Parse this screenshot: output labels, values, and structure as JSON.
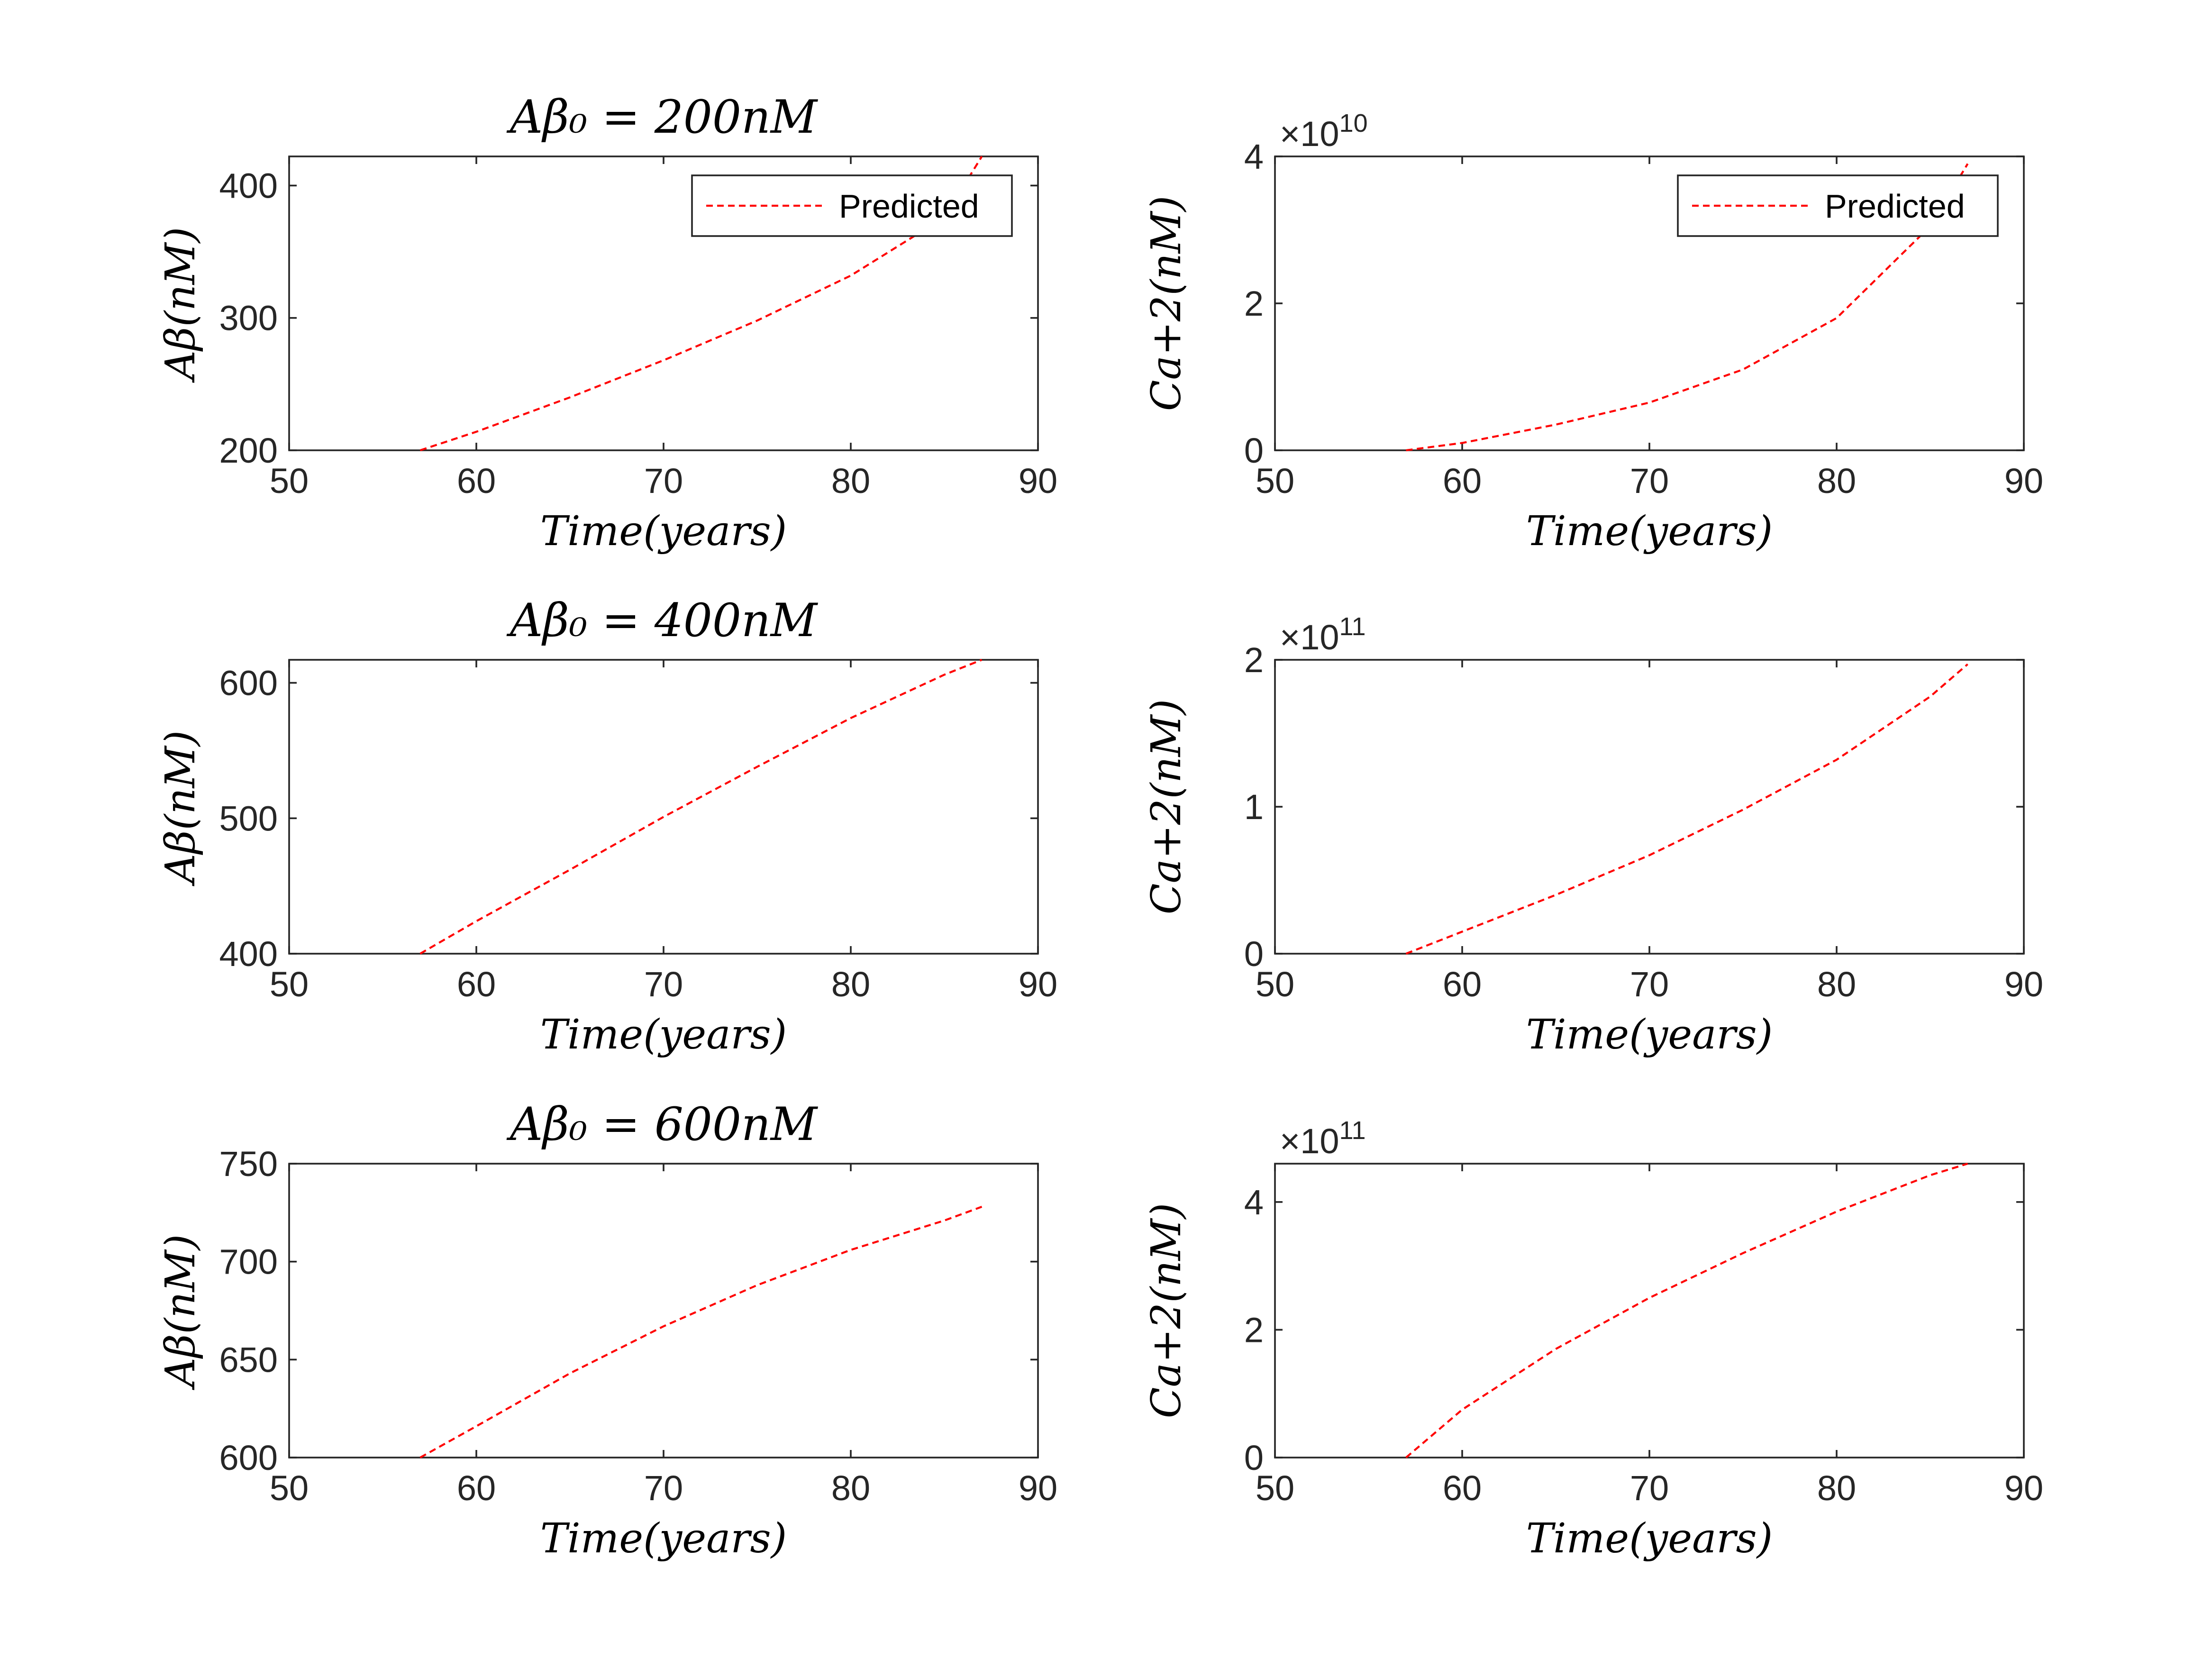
{
  "chart_data": [
    {
      "type": "line",
      "title": "Aβ₀ = 200nM",
      "xlabel": "Time(years)",
      "ylabel": "Aβ(nM)",
      "xlim": [
        50,
        90
      ],
      "ylim": [
        200,
        422
      ],
      "xticks": [
        "50",
        "60",
        "70",
        "80",
        "90"
      ],
      "yticks": [
        "200",
        "300",
        "400"
      ],
      "legend": "top-right",
      "series": [
        {
          "name": "Predicted",
          "color": "#ff0000",
          "x": [
            57,
            60,
            65,
            70,
            75,
            80,
            85,
            87
          ],
          "y": [
            200,
            214,
            240,
            268,
            298,
            332,
            376,
            422
          ]
        }
      ]
    },
    {
      "type": "line",
      "xlabel": "Time(years)",
      "ylabel": "Ca+2(nM)",
      "exponent": "10",
      "xlim": [
        50,
        90
      ],
      "ylim": [
        0,
        4
      ],
      "xticks": [
        "50",
        "60",
        "70",
        "80",
        "90"
      ],
      "yticks": [
        "0",
        "2",
        "4"
      ],
      "legend": "top-right",
      "series": [
        {
          "name": "Predicted",
          "color": "#ff0000",
          "x": [
            57,
            60,
            65,
            70,
            75,
            80,
            85,
            87
          ],
          "y": [
            0,
            0.1,
            0.35,
            0.65,
            1.1,
            1.8,
            3.05,
            3.9
          ]
        }
      ]
    },
    {
      "type": "line",
      "title": "Aβ₀ = 400nM",
      "xlabel": "Time(years)",
      "ylabel": "Aβ(nM)",
      "xlim": [
        50,
        90
      ],
      "ylim": [
        400,
        617
      ],
      "xticks": [
        "50",
        "60",
        "70",
        "80",
        "90"
      ],
      "yticks": [
        "400",
        "500",
        "600"
      ],
      "series": [
        {
          "color": "#ff0000",
          "x": [
            57,
            60,
            65,
            70,
            75,
            80,
            85,
            87
          ],
          "y": [
            400,
            424,
            462,
            501,
            538,
            574,
            606,
            617
          ]
        }
      ]
    },
    {
      "type": "line",
      "xlabel": "Time(years)",
      "ylabel": "Ca+2(nM)",
      "exponent": "11",
      "xlim": [
        50,
        90
      ],
      "ylim": [
        0,
        2
      ],
      "xticks": [
        "50",
        "60",
        "70",
        "80",
        "90"
      ],
      "yticks": [
        "0",
        "1",
        "2"
      ],
      "series": [
        {
          "color": "#ff0000",
          "x": [
            57,
            60,
            65,
            70,
            75,
            80,
            85,
            87
          ],
          "y": [
            0,
            0.15,
            0.4,
            0.67,
            0.98,
            1.32,
            1.75,
            1.97
          ]
        }
      ]
    },
    {
      "type": "line",
      "title": "Aβ₀ = 600nM",
      "xlabel": "Time(years)",
      "ylabel": "Aβ(nM)",
      "xlim": [
        50,
        90
      ],
      "ylim": [
        600,
        750
      ],
      "xticks": [
        "50",
        "60",
        "70",
        "80",
        "90"
      ],
      "yticks": [
        "600",
        "650",
        "700",
        "750"
      ],
      "series": [
        {
          "color": "#ff0000",
          "x": [
            57,
            60,
            65,
            70,
            75,
            80,
            85,
            87
          ],
          "y": [
            600,
            616,
            643,
            667,
            688,
            706,
            721,
            728
          ]
        }
      ]
    },
    {
      "type": "line",
      "xlabel": "Time(years)",
      "ylabel": "Ca+2(nM)",
      "exponent": "11",
      "xlim": [
        50,
        90
      ],
      "ylim": [
        0,
        4.6
      ],
      "xticks": [
        "50",
        "60",
        "70",
        "80",
        "90"
      ],
      "yticks": [
        "0",
        "2",
        "4"
      ],
      "series": [
        {
          "color": "#ff0000",
          "x": [
            57,
            60,
            65,
            70,
            75,
            80,
            85,
            87
          ],
          "y": [
            0,
            0.75,
            1.7,
            2.5,
            3.2,
            3.85,
            4.42,
            4.6
          ]
        }
      ]
    }
  ]
}
